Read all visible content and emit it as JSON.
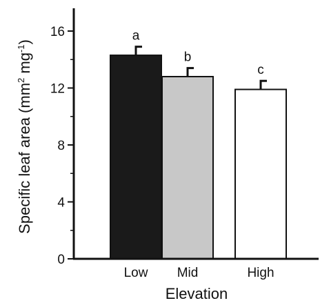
{
  "chart_data": {
    "type": "bar",
    "title": "",
    "xlabel": "Elevation",
    "ylabel": {
      "prefix": "Specific leaf area (mm",
      "sup1": "2",
      "middle": " mg",
      "sup2": "-1",
      "suffix": ")"
    },
    "categories": [
      "Low",
      "Mid",
      "High"
    ],
    "values": [
      14.3,
      12.8,
      11.9
    ],
    "errors": [
      0.6,
      0.6,
      0.6
    ],
    "significance": [
      "a",
      "b",
      "c"
    ],
    "colors": [
      "#1a1a1a",
      "#c8c8c8",
      "#ffffff"
    ],
    "ylim": [
      0,
      17.6
    ],
    "yticks": [
      0,
      4,
      8,
      12,
      16
    ],
    "minor_yticks": [
      2,
      6,
      10,
      14
    ],
    "grid": false
  }
}
